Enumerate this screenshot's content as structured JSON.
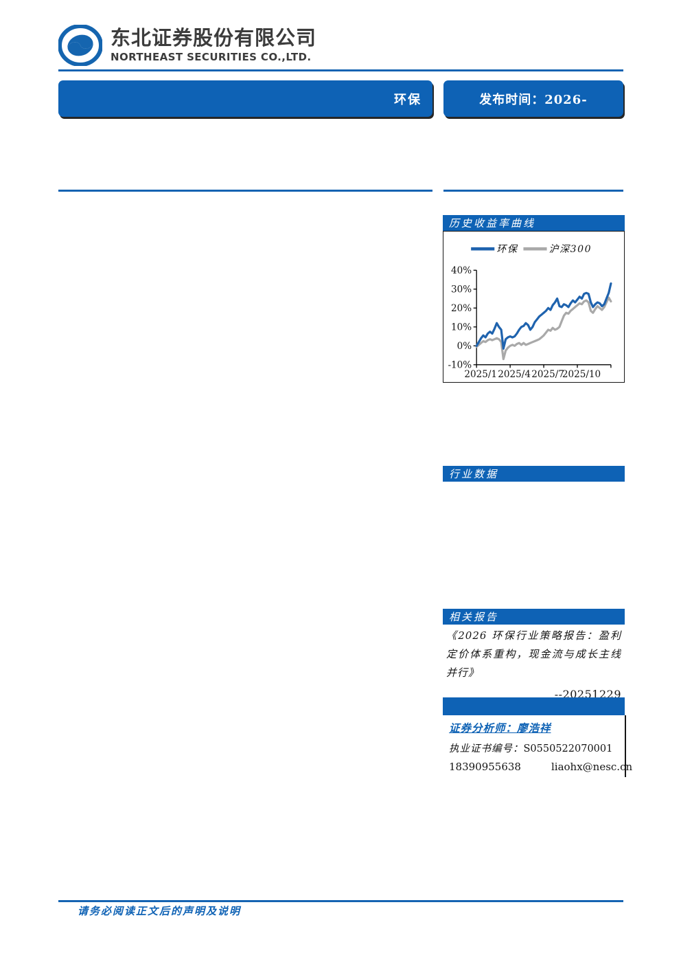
{
  "brand": {
    "name_cn": "东北证券股份有限公司",
    "name_en": "NORTHEAST SECURITIES CO.,LTD."
  },
  "header": {
    "industry_label": "环保",
    "publish_label": "发布时间：2026-"
  },
  "right_column": {
    "chart_section_title": "历史收益率曲线",
    "industry_data_title": "行业数据",
    "related_reports_title": "相关报告",
    "related_report": {
      "title": "《2026 环保行业策略报告：盈利定价体系重构，现金流与成长主线并行》",
      "date": "--20251229"
    },
    "analyst": {
      "analyst_label": "证券分析师：廖浩祥",
      "license_label": "执业证书编号：",
      "license_value": "S0550522070001",
      "phone": "18390955638",
      "email": "liaohx@nesc.cn"
    }
  },
  "footer": {
    "disclaimer": "请务必阅读正文后的声明及说明"
  },
  "colors": {
    "accent_blue": "#0e62b5",
    "rule_blue": "#1563b2",
    "series_blue": "#1f63ae",
    "series_gray": "#a9a9a9",
    "logo_blue": "#1565af"
  },
  "chart_data": {
    "type": "line",
    "title": "历史收益率曲线",
    "xlabel": "",
    "ylabel": "",
    "ylim": [
      -10,
      40
    ],
    "y_ticks": [
      40,
      30,
      20,
      10,
      0,
      -10
    ],
    "y_tick_suffix": "%",
    "x_tick_labels": [
      "2025/1",
      "2025/4",
      "2025/7",
      "2025/10"
    ],
    "x_tick_positions": [
      0,
      15,
      30,
      45
    ],
    "x_points_span_months": "2025/1 to 2025/12, 61 samples",
    "grid": false,
    "legend_position": "top",
    "series": [
      {
        "name": "环保",
        "color": "#1f63ae",
        "values": [
          0,
          2,
          4,
          5.5,
          4.5,
          6.5,
          7.5,
          6.5,
          9,
          12,
          10,
          8.5,
          -1.5,
          3.5,
          4.5,
          5,
          4.5,
          5,
          6.5,
          8.5,
          10,
          10.5,
          12,
          11,
          8.5,
          10,
          12.5,
          14,
          15.5,
          16.5,
          17.5,
          18.5,
          20,
          19,
          21.5,
          23,
          25,
          21,
          20.5,
          22,
          21.5,
          20.5,
          22.5,
          24,
          23,
          24.5,
          26,
          25,
          27.5,
          28,
          27.5,
          23,
          20.5,
          22,
          23,
          22.5,
          21,
          22,
          25,
          28,
          33
        ]
      },
      {
        "name": "沪深300",
        "color": "#a9a9a9",
        "values": [
          -0.5,
          0.5,
          1.5,
          2.5,
          2,
          3,
          3.5,
          3,
          3.5,
          4,
          3.5,
          2,
          -7,
          -2.5,
          -1,
          0,
          0.5,
          0,
          1,
          1.5,
          0.5,
          1.5,
          0.5,
          1,
          1.5,
          2,
          2.5,
          3,
          3.5,
          4.5,
          5.5,
          7,
          8.5,
          8,
          9.5,
          8.5,
          9,
          10,
          13,
          16,
          17.5,
          17,
          18.5,
          19.5,
          20.5,
          21.5,
          22.5,
          22,
          23.5,
          24,
          23,
          18.5,
          17.5,
          19.5,
          21,
          20,
          19,
          20.5,
          23,
          25.5,
          23.5
        ]
      }
    ]
  }
}
